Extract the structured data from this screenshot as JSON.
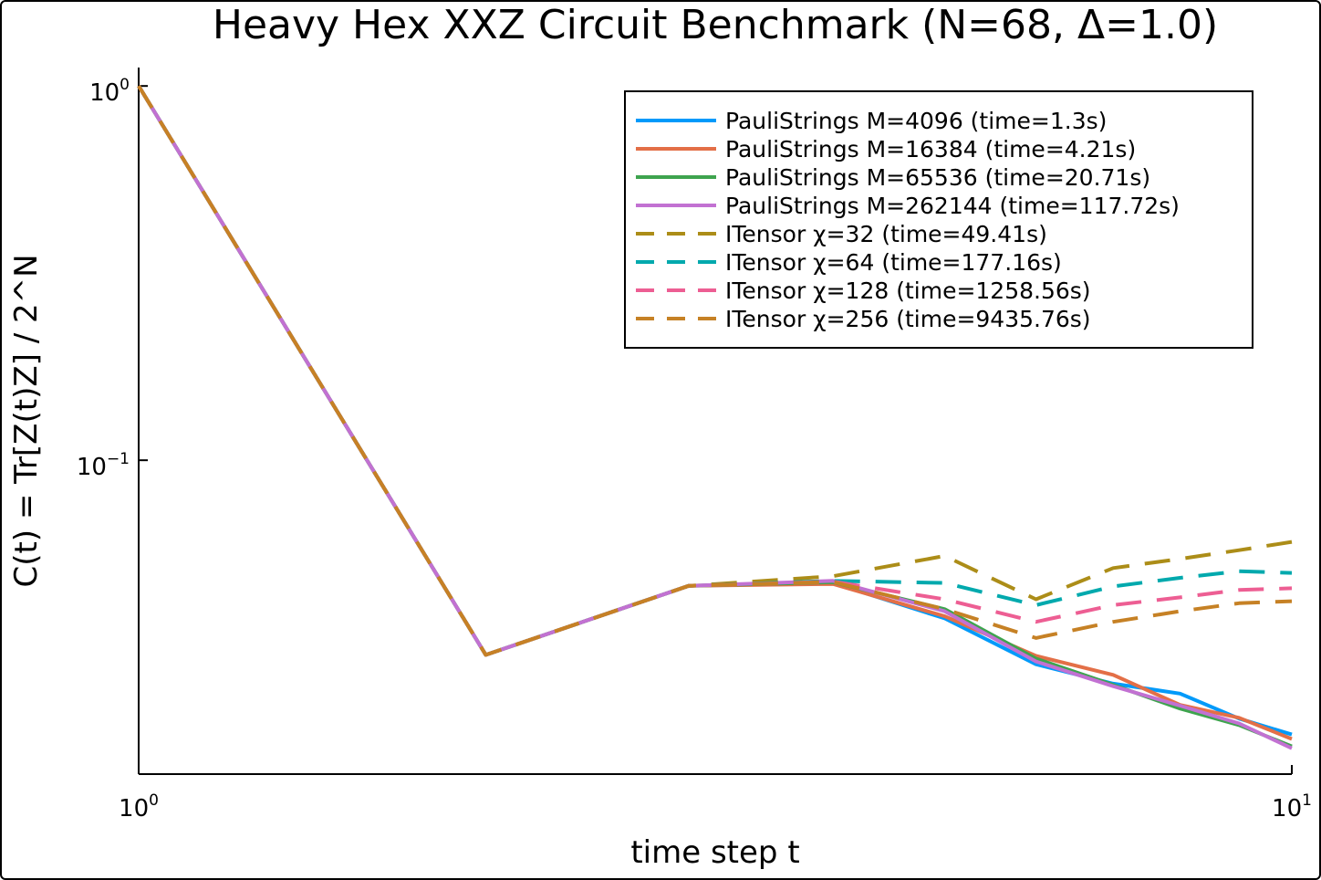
{
  "chart_data": {
    "type": "line",
    "title": "Heavy Hex XXZ Circuit Benchmark (N=68, Δ=1.0)",
    "xlabel": "time step t",
    "ylabel": "C(t) = Tr[Z(t)Z] / 2^N",
    "xscale": "log",
    "yscale": "log",
    "xlim": [
      1,
      10
    ],
    "ylim": [
      0.0145,
      1.12
    ],
    "x_ticks": [
      {
        "value": 1,
        "base": "10",
        "exp": "0"
      },
      {
        "value": 10,
        "base": "10",
        "exp": "1"
      }
    ],
    "y_ticks": [
      {
        "value": 1,
        "base": "10",
        "exp": "0"
      },
      {
        "value": 0.1,
        "base": "10",
        "exp": "−1"
      }
    ],
    "grid": false,
    "legend_position": "top-right",
    "x": [
      1,
      2,
      3,
      4,
      5,
      6,
      7,
      8,
      9,
      10
    ],
    "series": [
      {
        "name": "PauliStrings M=4096 (time=1.3s)",
        "color": "#009AFA",
        "dash": "solid",
        "values": [
          1.0,
          0.0302,
          0.0462,
          0.047,
          0.0378,
          0.0285,
          0.0253,
          0.0238,
          0.0204,
          0.0185
        ]
      },
      {
        "name": "PauliStrings M=16384 (time=4.21s)",
        "color": "#E36F47",
        "dash": "solid",
        "values": [
          1.0,
          0.0302,
          0.0462,
          0.0467,
          0.0383,
          0.03,
          0.0267,
          0.0222,
          0.0205,
          0.018
        ]
      },
      {
        "name": "PauliStrings M=65536 (time=20.71s)",
        "color": "#3EA44E",
        "dash": "solid",
        "values": [
          1.0,
          0.0302,
          0.0462,
          0.0472,
          0.04,
          0.0295,
          0.0251,
          0.0217,
          0.0196,
          0.0172
        ]
      },
      {
        "name": "PauliStrings M=262144 (time=117.72s)",
        "color": "#C271D2",
        "dash": "solid",
        "values": [
          1.0,
          0.0302,
          0.0462,
          0.0476,
          0.0395,
          0.029,
          0.0249,
          0.0221,
          0.0198,
          0.017
        ]
      },
      {
        "name": "ITensor χ=32 (time=49.41s)",
        "color": "#AC8D18",
        "dash": "dashed",
        "values": [
          1.0,
          0.0302,
          0.0462,
          0.049,
          0.0555,
          0.0425,
          0.0515,
          0.0545,
          0.0575,
          0.0605
        ]
      },
      {
        "name": "ITensor χ=64 (time=177.16s)",
        "color": "#00A9AD",
        "dash": "dashed",
        "values": [
          1.0,
          0.0302,
          0.0462,
          0.0476,
          0.047,
          0.041,
          0.046,
          0.0485,
          0.0505,
          0.05
        ]
      },
      {
        "name": "ITensor χ=128 (time=1258.56s)",
        "color": "#ED5E93",
        "dash": "dashed",
        "values": [
          1.0,
          0.0302,
          0.0462,
          0.0474,
          0.0425,
          0.037,
          0.041,
          0.043,
          0.045,
          0.0455
        ]
      },
      {
        "name": "ITensor χ=256 (time=9435.76s)",
        "color": "#C68125",
        "dash": "dashed",
        "values": [
          1.0,
          0.0302,
          0.0462,
          0.0473,
          0.04,
          0.0335,
          0.037,
          0.0395,
          0.0415,
          0.042
        ]
      }
    ]
  }
}
